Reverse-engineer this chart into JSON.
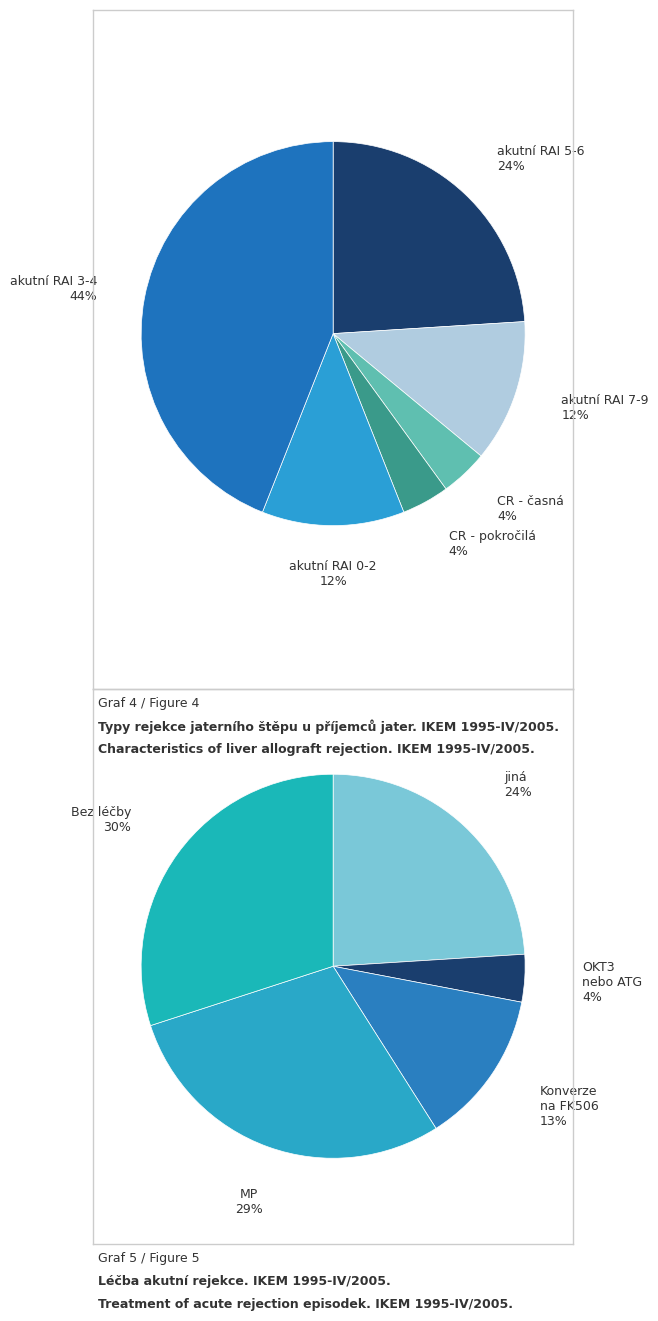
{
  "chart1": {
    "labels": [
      "akutíní RAI 5-6\n24%",
      "akutíní RAI 7-9\n12%",
      "CR - časná\n4%",
      "CR - pokročilá\n4%",
      "akutíní RAI 0-2\n12%",
      "akutíní RAI 3-4\n44%"
    ],
    "values": [
      24,
      12,
      4,
      4,
      12,
      44
    ],
    "colors": [
      "#1a3e6e",
      "#b0cce0",
      "#5fbfb0",
      "#3a9a8a",
      "#2a9fd6",
      "#1e73be"
    ],
    "label_texts": [
      "akutní RAI 5-6\n24%",
      "akutní RAI 7-9\n12%",
      "CR - časná\n4%",
      "CR - pokročilá\n4%",
      "akutní RAI 0-2\n12%",
      "akutní RAI 3-4\n44%"
    ],
    "startangle": 90,
    "caption_line1": "Graf 4 / Figure 4",
    "caption_line2": "Typy rejekce jaterního štěpu u příjemců jater. IKEM 1995-IV/2005.",
    "caption_line3": "Characteristics of liver allograft rejection. IKEM 1995-IV/2005."
  },
  "chart2": {
    "labels": [
      "jiná\n24%",
      "OKT3\nnebo ATG\n4%",
      "Konverze\nna FK506\n13%",
      "MP\n29%",
      "Bez léčby\n30%"
    ],
    "values": [
      24,
      4,
      13,
      29,
      30
    ],
    "colors": [
      "#7ac8d8",
      "#1a3e6e",
      "#2a7fc0",
      "#29a8c8",
      "#1ab8b8"
    ],
    "startangle": 90,
    "caption_line1": "Graf 5 / Figure 5",
    "caption_line2": "Léčba akutní rejekce. IKEM 1995-IV/2005.",
    "caption_line3": "Treatment of acute rejection episodek. IKEM 1995-IV/2005."
  },
  "background_color": "#ffffff",
  "border_color": "#cccccc",
  "text_color": "#333333",
  "caption_fontsize": 9,
  "caption_bold_fontsize": 9
}
